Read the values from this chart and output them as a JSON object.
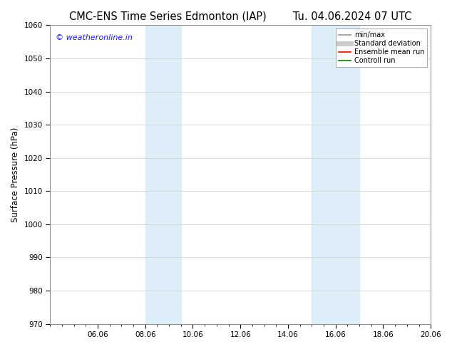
{
  "title_left": "CMC-ENS Time Series Edmonton (IAP)",
  "title_right": "Tu. 04.06.2024 07 UTC",
  "ylabel": "Surface Pressure (hPa)",
  "ylim": [
    970,
    1060
  ],
  "yticks": [
    970,
    980,
    990,
    1000,
    1010,
    1020,
    1030,
    1040,
    1050,
    1060
  ],
  "xlim": [
    0,
    16
  ],
  "xtick_labels": [
    "06.06",
    "08.06",
    "10.06",
    "12.06",
    "14.06",
    "16.06",
    "18.06",
    "20.06"
  ],
  "xtick_positions": [
    2,
    4,
    6,
    8,
    10,
    12,
    14,
    16
  ],
  "shaded_bands": [
    {
      "xmin": 4.0,
      "xmax": 5.5,
      "color": "#ddeef9"
    },
    {
      "xmin": 11.0,
      "xmax": 13.0,
      "color": "#ddeef9"
    }
  ],
  "watermark_text": "© weatheronline.in",
  "watermark_color": "#1a1aff",
  "legend_entries": [
    {
      "label": "min/max",
      "color": "#aaaaaa",
      "lw": 1.5,
      "ls": "-"
    },
    {
      "label": "Standard deviation",
      "color": "#cccccc",
      "lw": 5,
      "ls": "-"
    },
    {
      "label": "Ensemble mean run",
      "color": "#ff0000",
      "lw": 1.2,
      "ls": "-"
    },
    {
      "label": "Controll run",
      "color": "#008000",
      "lw": 1.2,
      "ls": "-"
    }
  ],
  "bg_color": "#ffffff",
  "grid_color": "#cccccc",
  "title_fontsize": 10.5,
  "label_fontsize": 8.5,
  "tick_fontsize": 7.5
}
